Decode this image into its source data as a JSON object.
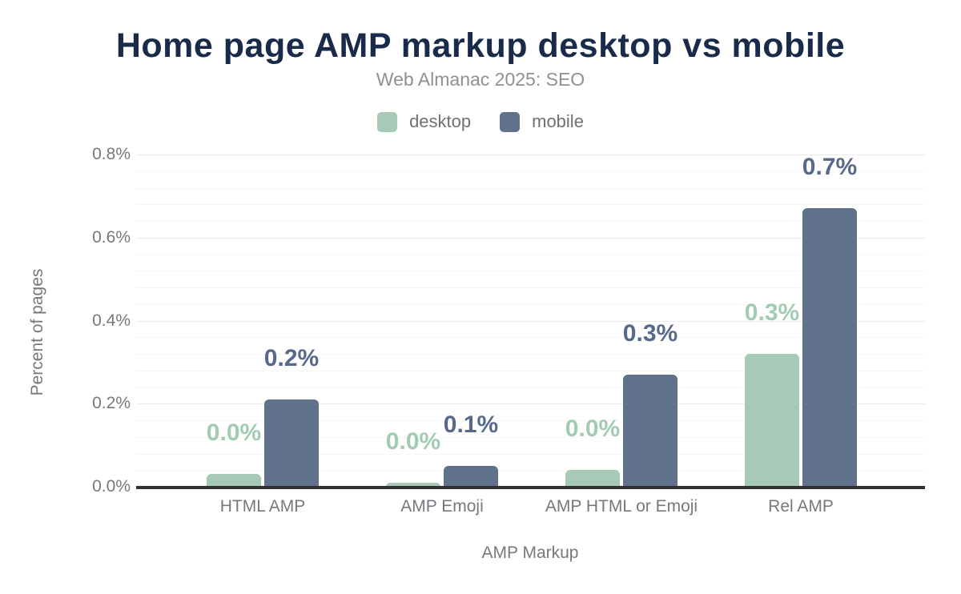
{
  "chart_data": {
    "type": "bar",
    "title": "Home page AMP markup desktop vs mobile",
    "subtitle": "Web Almanac 2025: SEO",
    "xlabel": "AMP Markup",
    "ylabel": "Percent of pages",
    "categories": [
      "HTML AMP",
      "AMP Emoji",
      "AMP HTML or Emoji",
      "Rel AMP"
    ],
    "series": [
      {
        "name": "desktop",
        "color": "#a7cab8",
        "label_color": "#a2ccb2",
        "values": [
          0.03,
          0.01,
          0.04,
          0.32
        ],
        "value_labels": [
          "0.0%",
          "0.0%",
          "0.0%",
          "0.3%"
        ]
      },
      {
        "name": "mobile",
        "color": "#60718c",
        "label_color": "#57698b",
        "values": [
          0.21,
          0.05,
          0.27,
          0.67
        ],
        "value_labels": [
          "0.2%",
          "0.1%",
          "0.3%",
          "0.7%"
        ]
      }
    ],
    "ylim": [
      0,
      0.8
    ],
    "yticks": [
      "0.0%",
      "0.2%",
      "0.4%",
      "0.6%",
      "0.8%"
    ],
    "ytick_values": [
      0,
      0.2,
      0.4,
      0.6,
      0.8
    ],
    "grid": {
      "orientation": "horizontal",
      "major_step": 0.2,
      "minor_step": 0.04,
      "major_color": "#e9eaeb",
      "minor_color": "#f5f6f6"
    },
    "legend_position": "top",
    "colors": {
      "title": "#1a2b49",
      "subtitle_text": "#8d9196",
      "axis_text": "#75797e",
      "axis_line": "#2f3133",
      "background": "#ffffff"
    }
  }
}
